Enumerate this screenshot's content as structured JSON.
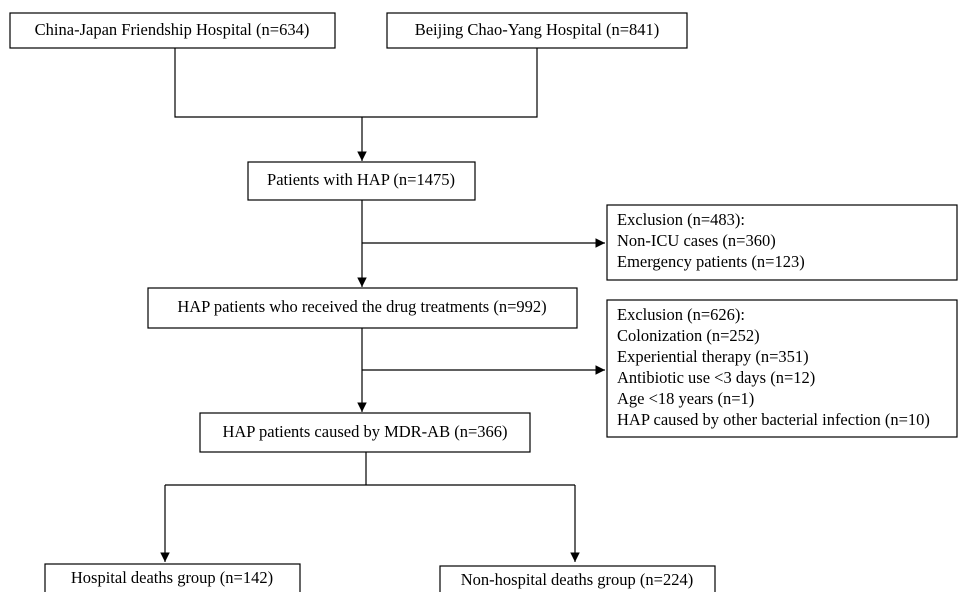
{
  "nodes": [
    {
      "label": "China-Japan Friendship Hospital (n=634)"
    },
    {
      "label": "Beijing Chao-Yang Hospital (n=841)"
    },
    {
      "label": "Patients with HAP (n=1475)"
    },
    {
      "label": "HAP patients who received the drug treatments (n=992)"
    },
    {
      "label": "HAP patients caused by MDR-AB (n=366)"
    },
    {
      "label": "Hospital deaths group (n=142)"
    },
    {
      "label": "Non-hospital deaths group (n=224)"
    }
  ],
  "exclusions": [
    {
      "title": "Exclusion (n=483):",
      "items": [
        "Non-ICU cases (n=360)",
        "Emergency patients (n=123)"
      ]
    },
    {
      "title": "Exclusion (n=626):",
      "items": [
        "Colonization (n=252)",
        "Experiential therapy (n=351)",
        "Antibiotic use <3 days (n=12)",
        "Age <18 years (n=1)",
        "HAP caused by other bacterial infection (n=10)"
      ]
    }
  ]
}
